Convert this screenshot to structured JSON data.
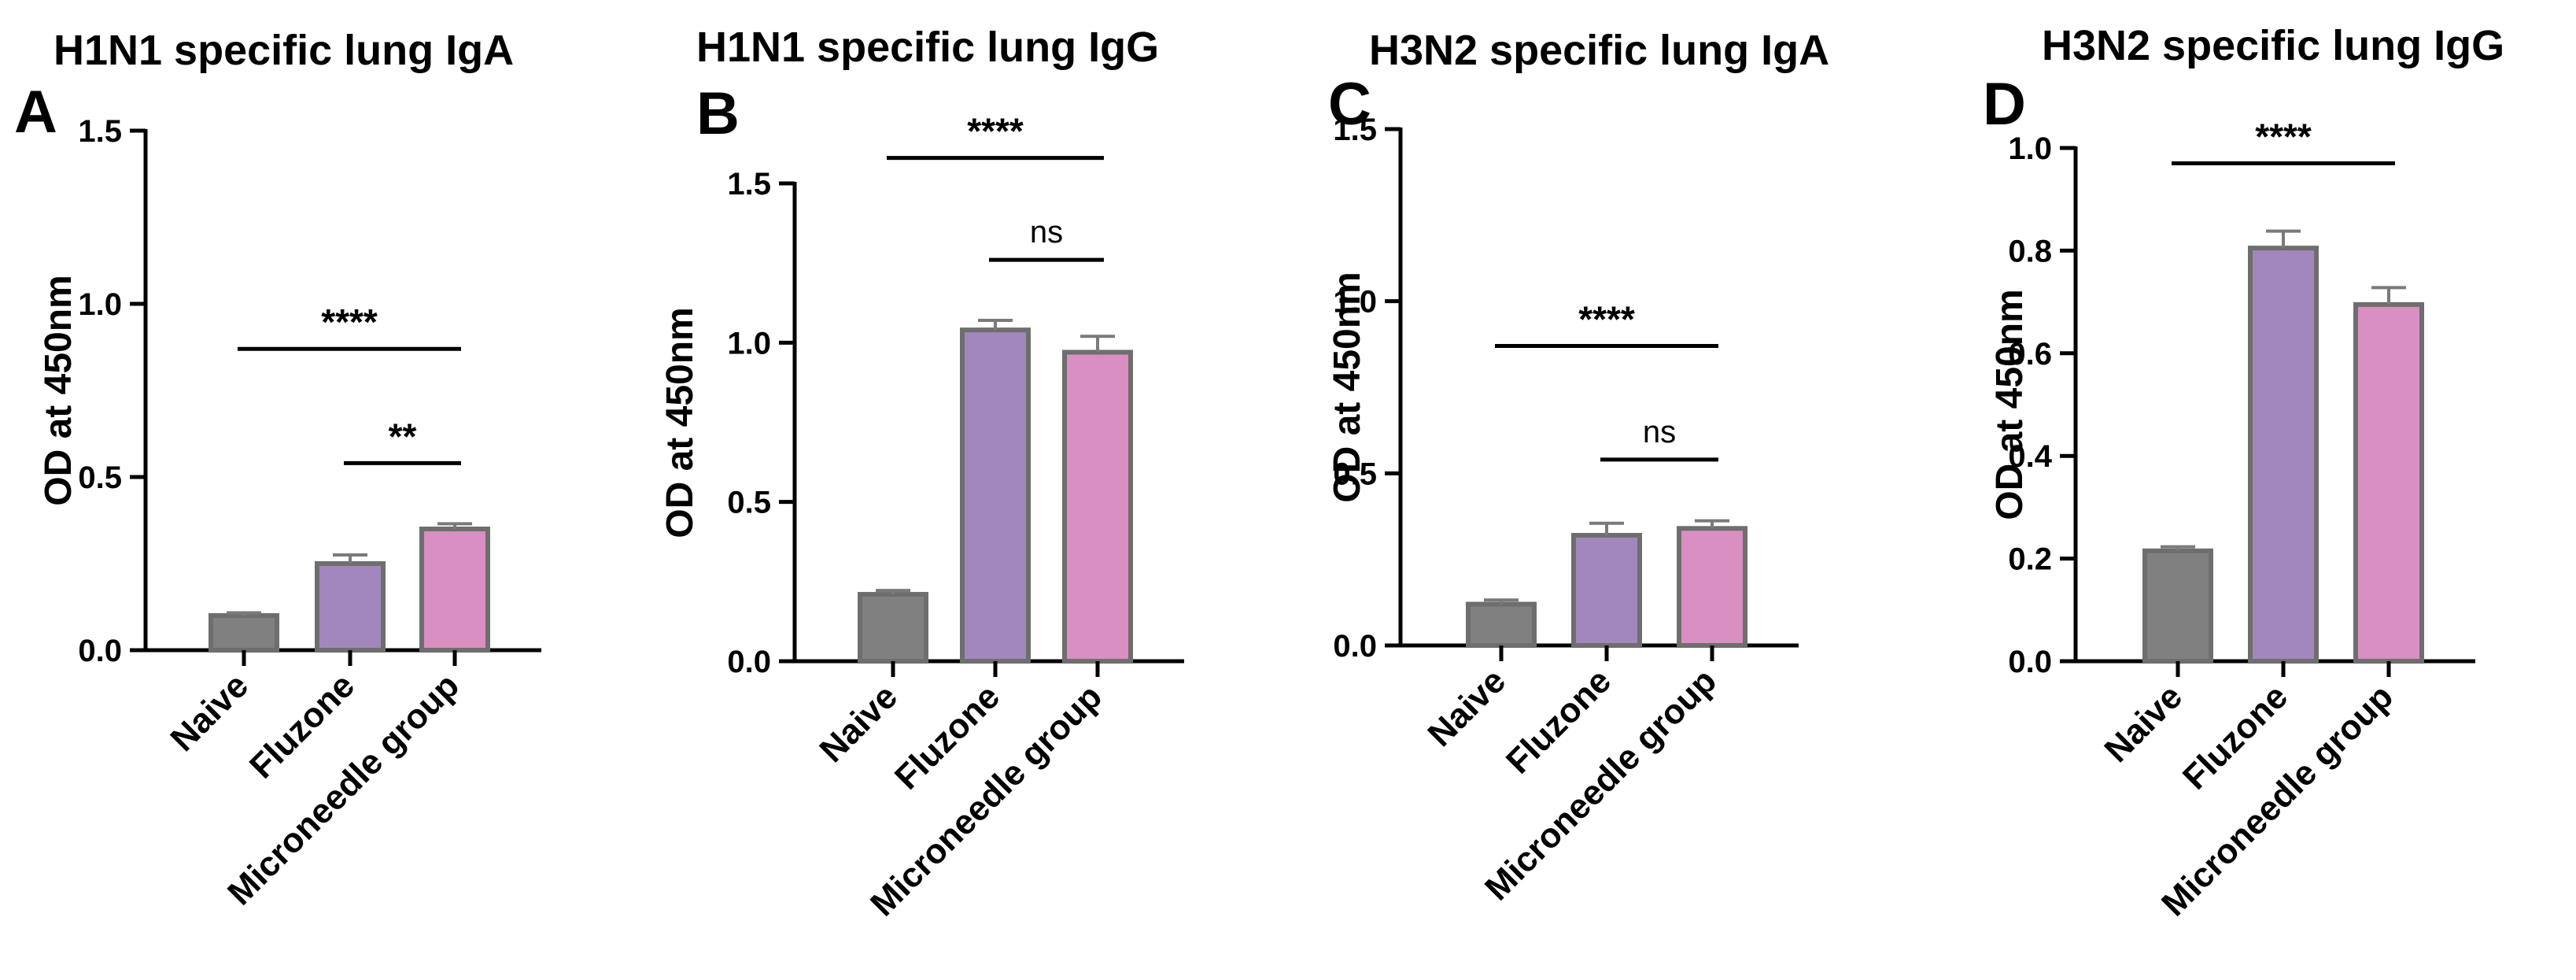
{
  "colors": {
    "axis": "#000000",
    "bar_outline": "#6e6e6e",
    "error_bar": "#7a7a7a",
    "bracket": "#000000"
  },
  "chart_data": [
    {
      "type": "bar",
      "panel": "A",
      "title": "H1N1 specific lung IgA",
      "ylabel": "OD at 450nm",
      "xlabel": "",
      "categories": [
        "Naive",
        "Fluzone",
        "Microneedle group"
      ],
      "values": [
        0.1,
        0.25,
        0.35
      ],
      "errors": [
        0.008,
        0.025,
        0.015
      ],
      "colors": [
        "#808080",
        "#a287bd",
        "#d98fc1"
      ],
      "ylim": [
        0,
        1.5
      ],
      "yticks": [
        0,
        0.5,
        1.0,
        1.5
      ],
      "ytick_labels": [
        "0.0",
        "0.5",
        "1.0",
        "1.5"
      ],
      "grid": false,
      "significance": [
        {
          "from": 0,
          "to": 2,
          "label": "****",
          "y": 0.87
        },
        {
          "from": 1,
          "to": 2,
          "label": "**",
          "y": 0.54
        }
      ]
    },
    {
      "type": "bar",
      "panel": "B",
      "title": "H1N1 specific lung IgG",
      "ylabel": "OD at 450nm",
      "xlabel": "",
      "categories": [
        "Naive",
        "Fluzone",
        "Microneedle group"
      ],
      "values": [
        0.21,
        1.04,
        0.97
      ],
      "errors": [
        0.012,
        0.03,
        0.05
      ],
      "colors": [
        "#808080",
        "#a287bd",
        "#d98fc1"
      ],
      "ylim": [
        0,
        1.5
      ],
      "yticks": [
        0,
        0.5,
        1.0,
        1.5
      ],
      "ytick_labels": [
        "0.0",
        "0.5",
        "1.0",
        "1.5"
      ],
      "grid": false,
      "significance": [
        {
          "from": 0,
          "to": 2,
          "label": "****",
          "y": 1.58
        },
        {
          "from": 1,
          "to": 2,
          "label": "ns",
          "y": 1.26
        }
      ]
    },
    {
      "type": "bar",
      "panel": "C",
      "title": "H3N2 specific lung IgA",
      "ylabel": "OD at 450nm",
      "xlabel": "",
      "categories": [
        "Naive",
        "Fluzone",
        "Microneedle group"
      ],
      "values": [
        0.12,
        0.32,
        0.34
      ],
      "errors": [
        0.012,
        0.035,
        0.022
      ],
      "colors": [
        "#808080",
        "#a287bd",
        "#d98fc1"
      ],
      "ylim": [
        0,
        1.5
      ],
      "yticks": [
        0,
        0.5,
        1.0,
        1.5
      ],
      "ytick_labels": [
        "0.0",
        "0.5",
        "1.0",
        "1.5"
      ],
      "grid": false,
      "significance": [
        {
          "from": 0,
          "to": 2,
          "label": "****",
          "y": 0.87
        },
        {
          "from": 1,
          "to": 2,
          "label": "ns",
          "y": 0.54
        }
      ]
    },
    {
      "type": "bar",
      "panel": "D",
      "title": "H3N2 specific lung IgG",
      "ylabel": "OD at 450nm",
      "xlabel": "",
      "categories": [
        "Naive",
        "Fluzone",
        "Microneedle group"
      ],
      "values": [
        0.215,
        0.805,
        0.695
      ],
      "errors": [
        0.008,
        0.033,
        0.033
      ],
      "colors": [
        "#808080",
        "#a287bd",
        "#d98fc1"
      ],
      "ylim": [
        0,
        1.0
      ],
      "yticks": [
        0,
        0.2,
        0.4,
        0.6,
        0.8,
        1.0
      ],
      "ytick_labels": [
        "0.0",
        "0.2",
        "0.4",
        "0.6",
        "0.8",
        "1.0"
      ],
      "grid": false,
      "significance": [
        {
          "from": 0,
          "to": 2,
          "label": "****",
          "y": 0.97
        }
      ]
    }
  ]
}
